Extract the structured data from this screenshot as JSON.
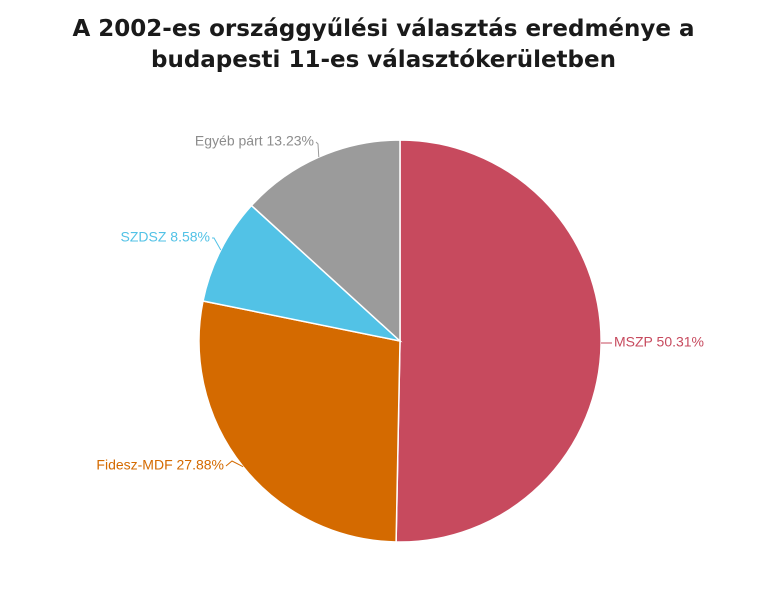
{
  "title_lines": [
    "A 2002-es országgyűlési választás eredménye a",
    "budapesti 11-es választókerületben"
  ],
  "chart_data": {
    "type": "pie",
    "title": "A 2002-es országgyűlési választás eredménye a budapesti 11-es választókerületben",
    "slices": [
      {
        "name": "MSZP",
        "value": 50.31,
        "label": "MSZP 50.31%",
        "color": "#c74a5e"
      },
      {
        "name": "Fidesz-MDF",
        "value": 27.88,
        "label": "Fidesz-MDF 27.88%",
        "color": "#d46a00"
      },
      {
        "name": "SZDSZ",
        "value": 8.58,
        "label": "SZDSZ 8.58%",
        "color": "#52c2e6"
      },
      {
        "name": "Egyéb párt",
        "value": 13.23,
        "label": "Egyéb párt 13.23%",
        "color": "#9b9b9b"
      }
    ]
  }
}
